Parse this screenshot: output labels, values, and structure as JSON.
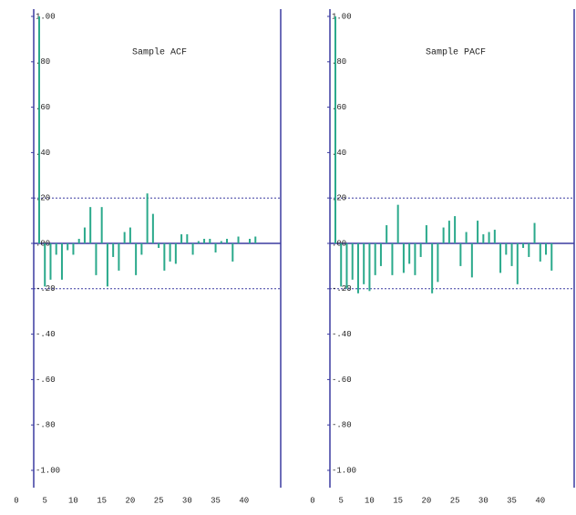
{
  "chart_data": [
    {
      "type": "bar",
      "title": "Sample ACF",
      "color": "#2aa98b",
      "axis_color": "#3b3ba0",
      "confidence_bounds": [
        -0.2,
        0.2
      ],
      "x": [
        4,
        5,
        6,
        7,
        8,
        9,
        10,
        11,
        12,
        13,
        14,
        15,
        16,
        17,
        18,
        19,
        20,
        21,
        22,
        23,
        24,
        25,
        26,
        27,
        28,
        29,
        30,
        31,
        32,
        33,
        34,
        35,
        36,
        37,
        38,
        39,
        40,
        41,
        42
      ],
      "values": [
        1.0,
        -0.19,
        -0.16,
        -0.05,
        -0.16,
        -0.03,
        -0.05,
        0.02,
        0.07,
        0.16,
        -0.14,
        0.16,
        -0.19,
        -0.06,
        -0.12,
        0.05,
        0.07,
        -0.14,
        -0.05,
        0.22,
        0.13,
        -0.02,
        -0.12,
        -0.08,
        -0.09,
        0.04,
        0.04,
        -0.05,
        0.01,
        0.02,
        0.02,
        -0.04,
        0.01,
        0.02,
        -0.08,
        0.03,
        0.0,
        0.02,
        0.03
      ],
      "xlim": [
        0,
        45
      ],
      "xticks": [
        0,
        5,
        10,
        15,
        20,
        25,
        30,
        35,
        40
      ],
      "ylim": [
        -1,
        1
      ],
      "yticks": [
        {
          "value": 1,
          "label": "1.00"
        },
        {
          "value": 0.8,
          "label": ".80"
        },
        {
          "value": 0.6,
          "label": ".60"
        },
        {
          "value": 0.4,
          "label": ".40"
        },
        {
          "value": 0.2,
          "label": ".20"
        },
        {
          "value": 0,
          "label": ".00"
        },
        {
          "value": -0.2,
          "label": "-.20"
        },
        {
          "value": -0.4,
          "label": "-.40"
        },
        {
          "value": -0.6,
          "label": "-.60"
        },
        {
          "value": -0.8,
          "label": "-.80"
        },
        {
          "value": -1,
          "label": "-1.00"
        }
      ]
    },
    {
      "type": "bar",
      "title": "Sample PACF",
      "color": "#2aa98b",
      "axis_color": "#3b3ba0",
      "confidence_bounds": [
        -0.2,
        0.2
      ],
      "x": [
        4,
        5,
        6,
        7,
        8,
        9,
        10,
        11,
        12,
        13,
        14,
        15,
        16,
        17,
        18,
        19,
        20,
        21,
        22,
        23,
        24,
        25,
        26,
        27,
        28,
        29,
        30,
        31,
        32,
        33,
        34,
        35,
        36,
        37,
        38,
        39,
        40,
        41,
        42
      ],
      "values": [
        1.0,
        -0.19,
        -0.2,
        -0.16,
        -0.22,
        -0.18,
        -0.21,
        -0.14,
        -0.1,
        0.08,
        -0.14,
        0.17,
        -0.13,
        -0.09,
        -0.14,
        -0.06,
        0.08,
        -0.22,
        -0.17,
        0.07,
        0.1,
        0.12,
        -0.1,
        0.05,
        -0.15,
        0.1,
        0.04,
        0.05,
        0.06,
        -0.13,
        -0.05,
        -0.1,
        -0.18,
        -0.02,
        -0.06,
        0.09,
        -0.08,
        -0.05,
        -0.12
      ],
      "xlim": [
        0,
        45
      ],
      "xticks": [
        0,
        5,
        10,
        15,
        20,
        25,
        30,
        35,
        40
      ],
      "ylim": [
        -1,
        1
      ],
      "yticks": [
        {
          "value": 1,
          "label": "1.00"
        },
        {
          "value": 0.8,
          "label": ".80"
        },
        {
          "value": 0.6,
          "label": ".60"
        },
        {
          "value": 0.4,
          "label": ".40"
        },
        {
          "value": 0.2,
          "label": ".20"
        },
        {
          "value": 0,
          "label": ".00"
        },
        {
          "value": -0.2,
          "label": "-.20"
        },
        {
          "value": -0.4,
          "label": "-.40"
        },
        {
          "value": -0.6,
          "label": "-.60"
        },
        {
          "value": -0.8,
          "label": "-.80"
        },
        {
          "value": -1,
          "label": "-1.00"
        }
      ]
    }
  ]
}
